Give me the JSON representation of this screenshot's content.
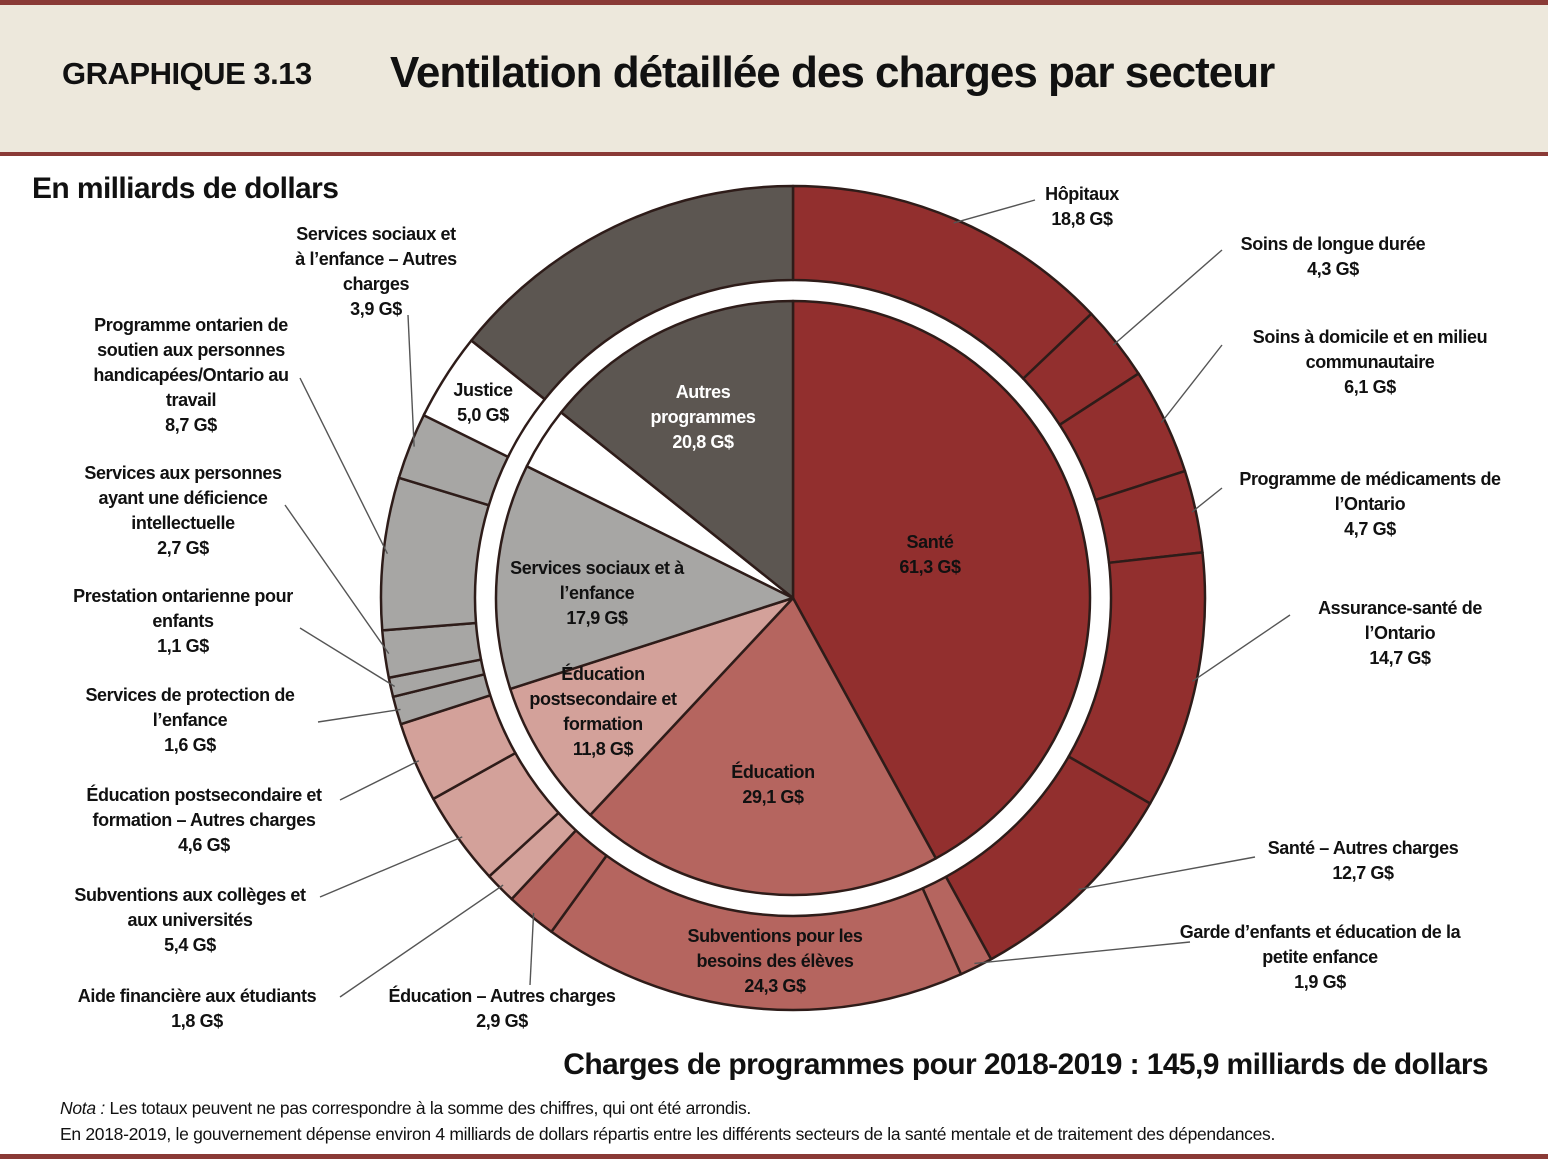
{
  "header": {
    "label": "GRAPHIQUE 3.13",
    "title": "Ventilation détaillée des charges par secteur"
  },
  "chart_data": {
    "type": "sunburst",
    "unit_label": "En milliards de dollars",
    "total_label": "Charges de programmes pour 2018-2019 : 145,9 milliards de dollars",
    "categories": [
      "Santé",
      "Éducation",
      "Éducation postsecondaire et formation",
      "Services sociaux et à l’enfance",
      "Justice",
      "Autres programmes"
    ],
    "values": [
      61.3,
      29.1,
      11.8,
      17.9,
      5.0,
      20.8
    ],
    "value_labels": [
      "61,3 G$",
      "29,1 G$",
      "11,8 G$",
      "17,9 G$",
      "5,0 G$",
      "20,8 G$"
    ],
    "colors": [
      "#922f2e",
      "#b5655f",
      "#d3a19a",
      "#a7a6a4",
      "#ffffff",
      "#5c5651"
    ],
    "children": [
      {
        "categories": [
          "Hôpitaux",
          "Soins de longue durée",
          "Soins à domicile et en milieu communautaire",
          "Programme de médicaments de l’Ontario",
          "Assurance-santé de l’Ontario",
          "Santé – Autres charges"
        ],
        "values": [
          18.8,
          4.3,
          6.1,
          4.7,
          14.7,
          12.7
        ],
        "value_labels": [
          "18,8 G$",
          "4,3 G$",
          "6,1 G$",
          "4,7 G$",
          "14,7 G$",
          "12,7 G$"
        ]
      },
      {
        "categories": [
          "Garde d’enfants et éducation de la petite enfance",
          "Subventions pour les besoins des élèves",
          "Éducation – Autres charges"
        ],
        "values": [
          1.9,
          24.3,
          2.9
        ],
        "value_labels": [
          "1,9 G$",
          "24,3 G$",
          "2,9 G$"
        ]
      },
      {
        "categories": [
          "Aide financière aux étudiants",
          "Subventions aux collèges et aux universités",
          "Éducation postsecondaire et formation – Autres charges"
        ],
        "values": [
          1.8,
          5.4,
          4.6
        ],
        "value_labels": [
          "1,8 G$",
          "5,4 G$",
          "4,6 G$"
        ]
      },
      {
        "categories": [
          "Services de protection de l’enfance",
          "Prestation ontarienne pour enfants",
          "Services aux personnes ayant une déficience intellectuelle",
          "Programme ontarien de soutien aux personnes handicapées/Ontario au travail",
          "Services sociaux et à l’enfance – Autres charges"
        ],
        "values": [
          1.6,
          1.1,
          2.7,
          8.7,
          3.9
        ],
        "value_labels": [
          "1,6 G$",
          "1,1 G$",
          "2,7 G$",
          "8,7 G$",
          "3,9 G$"
        ]
      }
    ]
  },
  "notes": {
    "lead": "Nota :",
    "text": "Les totaux peuvent ne pas correspondre à la somme des chiffres, qui ont été arrondis.",
    "line2": "En 2018-2019, le gouvernement dépense environ 4 milliards de dollars répartis entre les différents secteurs de la santé mentale et de traitement des dépendances."
  }
}
